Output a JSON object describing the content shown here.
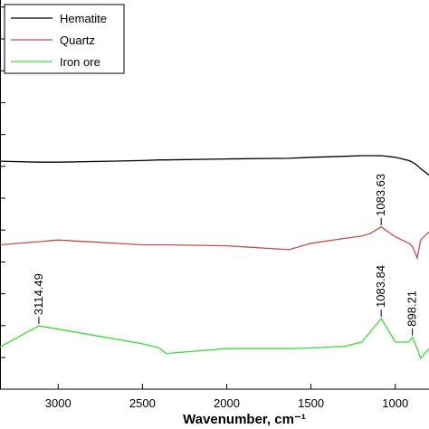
{
  "chart_data": {
    "type": "line",
    "x_label": "Wavenumber, cm⁻¹",
    "x": [
      3345,
      3114.49,
      3000,
      2500,
      2400,
      2360,
      2000,
      1630,
      1500,
      1300,
      1200,
      1150,
      1083.7,
      1000,
      920,
      898,
      870,
      850,
      800
    ],
    "series": [
      {
        "name": "Hematite",
        "color": "#000000",
        "values": [
          7.03,
          7.0,
          7.0,
          7.05,
          7.07,
          7.07,
          7.1,
          7.12,
          7.15,
          7.18,
          7.2,
          7.2,
          7.2,
          7.15,
          7.05,
          7.0,
          6.9,
          6.8,
          6.6
        ]
      },
      {
        "name": "Quartz",
        "color": "#c0504d",
        "values": [
          4.45,
          4.55,
          4.6,
          4.45,
          4.45,
          4.45,
          4.42,
          4.3,
          4.5,
          4.65,
          4.72,
          4.8,
          5.0,
          4.7,
          4.5,
          4.4,
          4.05,
          4.6,
          4.85
        ],
        "peaks": [
          1083.63
        ]
      },
      {
        "name": "Iron ore",
        "color": "#3ddc3d",
        "values": [
          1.3,
          1.95,
          1.85,
          1.4,
          1.27,
          1.1,
          1.25,
          1.25,
          1.27,
          1.32,
          1.45,
          1.75,
          2.18,
          1.45,
          1.45,
          1.6,
          1.25,
          0.95,
          1.25
        ],
        "peaks": [
          3114.49,
          1083.84,
          898.21
        ]
      }
    ],
    "xlim": [
      3345,
      800
    ],
    "ylim": [
      0,
      12
    ],
    "xticks": [
      3000,
      2500,
      2000,
      1500,
      1000
    ],
    "legend": "top-left"
  }
}
